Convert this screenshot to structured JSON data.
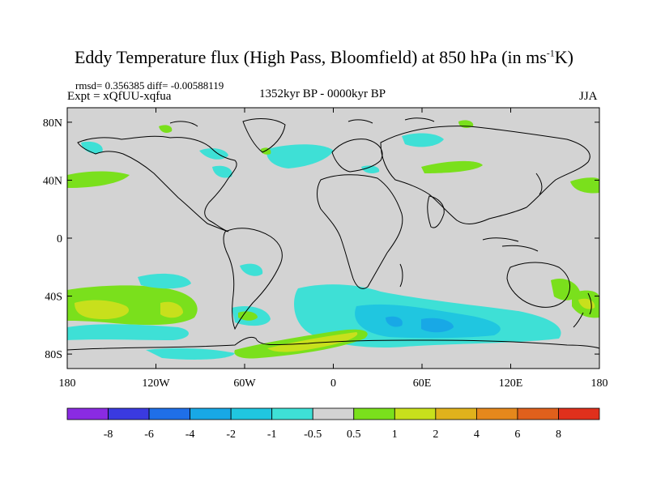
{
  "title_main": "Eddy Temperature flux (High Pass, Bloomfield) at 850 hPa (in ms",
  "title_sup": "-1",
  "title_end": "K)",
  "stats": "rmsd= 0.356385  diff= -0.00588119",
  "experiment": "Expt = xQfUU-xqfua",
  "period": "1352kyr BP - 0000kyr BP",
  "season": "JJA",
  "lat_labels": [
    "80N",
    "40N",
    "0",
    "40S",
    "80S"
  ],
  "lat_values": [
    80,
    40,
    0,
    -40,
    -80
  ],
  "lon_labels": [
    "180",
    "120W",
    "60W",
    "0",
    "60E",
    "120E",
    "180"
  ],
  "lon_values": [
    -180,
    -120,
    -60,
    0,
    60,
    120,
    180
  ],
  "colorbar": {
    "labels": [
      "-8",
      "-6",
      "-4",
      "-2",
      "-1",
      "-0.5",
      "0.5",
      "1",
      "2",
      "4",
      "6",
      "8"
    ],
    "colors": [
      "#8a2be2",
      "#3a3ae0",
      "#1f6fe8",
      "#18a8e6",
      "#20c6e0",
      "#3ee0d6",
      "#d3d3d3",
      "#7ae01c",
      "#c8e01c",
      "#e0b21c",
      "#e6881c",
      "#e0601c",
      "#e0301c"
    ]
  },
  "colors": {
    "ocean_land_neutral": "#d3d3d3",
    "coast": "#000000",
    "green": "#7ae01c",
    "yellow": "#c8e01c",
    "cyan": "#3ee0d6",
    "blue": "#20c6e0",
    "deepblue": "#18a8e6"
  }
}
